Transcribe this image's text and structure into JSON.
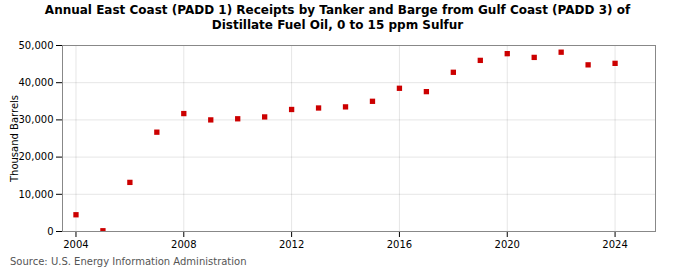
{
  "chart_data": {
    "type": "scatter",
    "title": "Annual East Coast (PADD 1) Receipts by Tanker and Barge from Gulf Coast (PADD 3) of\nDistillate Fuel Oil, 0 to 15 ppm Sulfur",
    "ylabel": "Thousand Barrels",
    "source": "Source: U.S. Energy Information Administration",
    "x": [
      2004,
      2005,
      2006,
      2007,
      2008,
      2009,
      2010,
      2011,
      2012,
      2013,
      2014,
      2015,
      2016,
      2017,
      2018,
      2019,
      2020,
      2021,
      2022,
      2023,
      2024
    ],
    "values": [
      4500,
      200,
      13200,
      26700,
      31700,
      30000,
      30300,
      30800,
      32800,
      33200,
      33500,
      35000,
      38500,
      37600,
      42800,
      46000,
      47800,
      46800,
      48200,
      44800,
      45200
    ],
    "color": "#cc0000",
    "marker": "square",
    "xlim": [
      2003.5,
      2025.5
    ],
    "xticks": [
      2004,
      2008,
      2012,
      2016,
      2020,
      2024
    ],
    "ylim": [
      0,
      50000
    ],
    "yticks": [
      0,
      {
        "value": 10000,
        "label": "10,000"
      },
      {
        "value": 20000,
        "label": "20,000"
      },
      {
        "value": 30000,
        "label": "30,000"
      },
      {
        "value": 40000,
        "label": "40,000"
      },
      {
        "value": 50000,
        "label": "50,000"
      }
    ],
    "grid": true
  }
}
